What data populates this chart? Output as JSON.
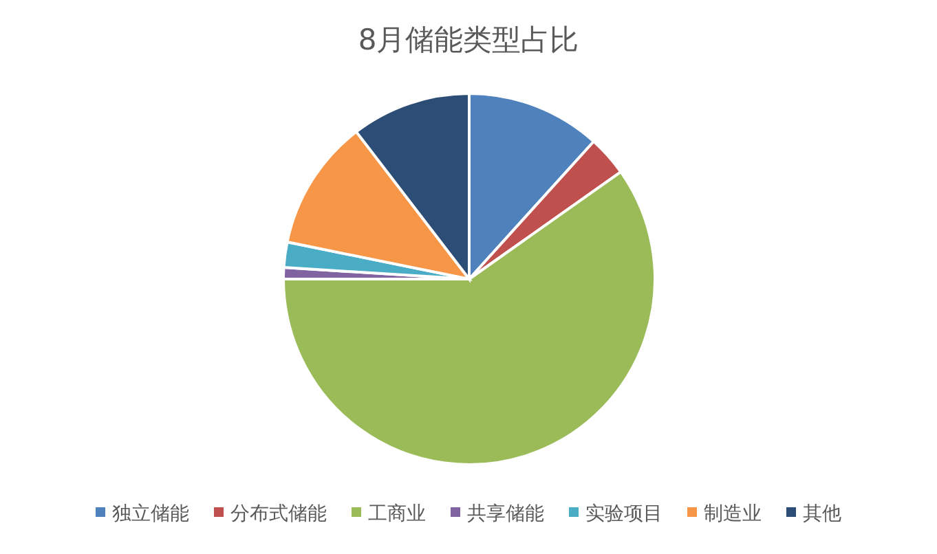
{
  "chart_data": {
    "type": "pie",
    "title": "8月储能类型占比",
    "categories": [
      "独立储能",
      "分布式储能",
      "工商业",
      "共享储能",
      "实验项目",
      "制造业",
      "其他"
    ],
    "values": [
      11.7,
      3.5,
      59.8,
      1.0,
      2.2,
      11.4,
      10.4
    ],
    "colors": [
      "#4f81bd",
      "#c0504d",
      "#9bbb59",
      "#8064a2",
      "#4bacc6",
      "#f79646",
      "#2c4d75"
    ],
    "legend": "bottom"
  }
}
